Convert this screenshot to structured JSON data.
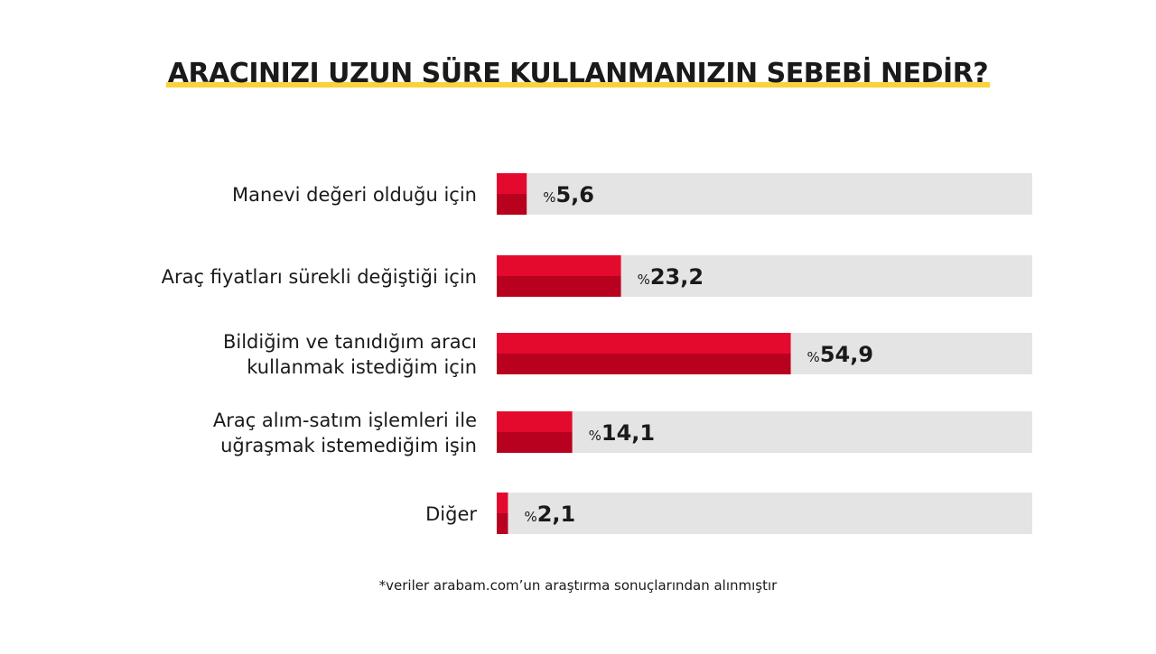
{
  "title": "ARACINIZI UZUN SÜRE KULLANMANIZIN SEBEBİ NEDİR?",
  "footnote": "*veriler arabam.com’un araştırma sonuçlarından alınmıştır",
  "colors": {
    "bar_top": "#e30a2e",
    "bar_bottom": "#b8001f",
    "track": "#e4e4e4",
    "title_underline": "#f9d23c"
  },
  "chart_data": {
    "type": "bar",
    "orientation": "horizontal",
    "xlim": [
      0,
      100
    ],
    "value_prefix": "%",
    "categories": [
      [
        "Manevi değeri olduğu için"
      ],
      [
        "Araç fiyatları sürekli değiştiği için"
      ],
      [
        "Bildiğim ve tanıdığım aracı",
        "kullanmak istediğim için"
      ],
      [
        "Araç alım-satım işlemleri ile",
        "uğraşmak istemediğim işin"
      ],
      [
        "Diğer"
      ]
    ],
    "values": [
      5.6,
      23.2,
      54.9,
      14.1,
      2.1
    ],
    "value_labels": [
      "5,6",
      "23,2",
      "54,9",
      "14,1",
      "2,1"
    ]
  }
}
